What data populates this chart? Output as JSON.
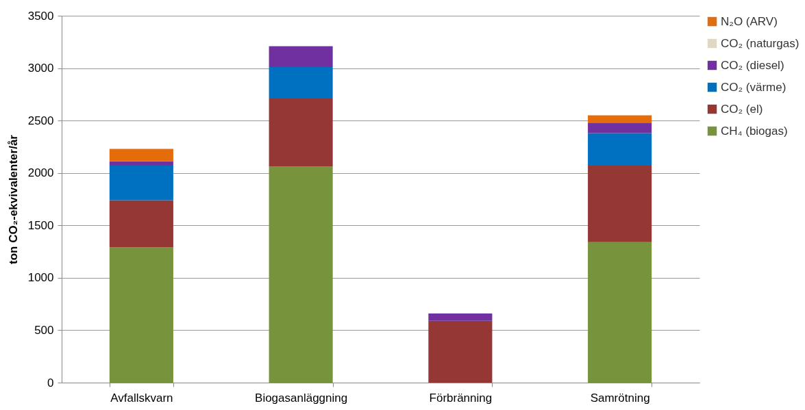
{
  "chart_data": {
    "type": "bar",
    "stacked": true,
    "ylabel": "ton CO₂-ekvivalenter/år",
    "categories": [
      "Avfallskvarn",
      "Biogasanläggning",
      "Förbränning",
      "Samrötning"
    ],
    "series": [
      {
        "name": "CH₄ (biogas)",
        "color": "#77933c",
        "values": [
          1290,
          2060,
          0,
          1340
        ]
      },
      {
        "name": "CO₂ (el)",
        "color": "#953735",
        "values": [
          450,
          650,
          590,
          730
        ]
      },
      {
        "name": "CO₂ (värme)",
        "color": "#0070c0",
        "values": [
          330,
          300,
          0,
          310
        ]
      },
      {
        "name": "CO₂ (diesel)",
        "color": "#7030a0",
        "values": [
          40,
          200,
          70,
          100
        ]
      },
      {
        "name": "CO₂ (naturgas)",
        "color": "#ddd9c3",
        "values": [
          0,
          0,
          0,
          0
        ]
      },
      {
        "name": "N₂O (ARV)",
        "color": "#e46c0a",
        "values": [
          120,
          0,
          0,
          70
        ]
      }
    ],
    "ylim": [
      0,
      3500
    ],
    "yticks": [
      0,
      500,
      1000,
      1500,
      2000,
      2500,
      3000,
      3500
    ],
    "grid": "y",
    "legend": "right"
  }
}
